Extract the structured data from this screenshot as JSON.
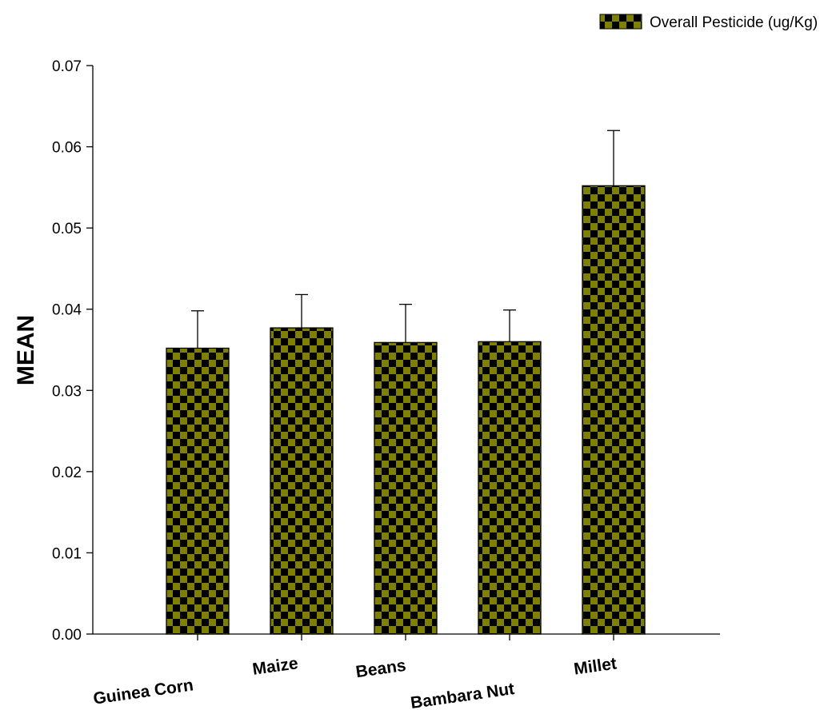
{
  "chart_data": {
    "type": "bar",
    "title": "",
    "xlabel": "",
    "ylabel": "MEAN",
    "categories": [
      "Guinea Corn",
      "Maize",
      "Beans",
      "Bambara Nut",
      "Millet"
    ],
    "series": [
      {
        "name": "Overall Pesticide (ug/Kg)",
        "values": [
          0.0352,
          0.0377,
          0.0359,
          0.036,
          0.0552
        ],
        "error_upper": [
          0.0046,
          0.0041,
          0.0047,
          0.0039,
          0.0068
        ],
        "color": "#808000",
        "pattern": "checkerboard"
      }
    ],
    "ylim": [
      0,
      0.07
    ],
    "yticks": [
      "0.00",
      "0.01",
      "0.02",
      "0.03",
      "0.04",
      "0.05",
      "0.06",
      "0.07"
    ],
    "grid": false,
    "legend": "top-right"
  }
}
